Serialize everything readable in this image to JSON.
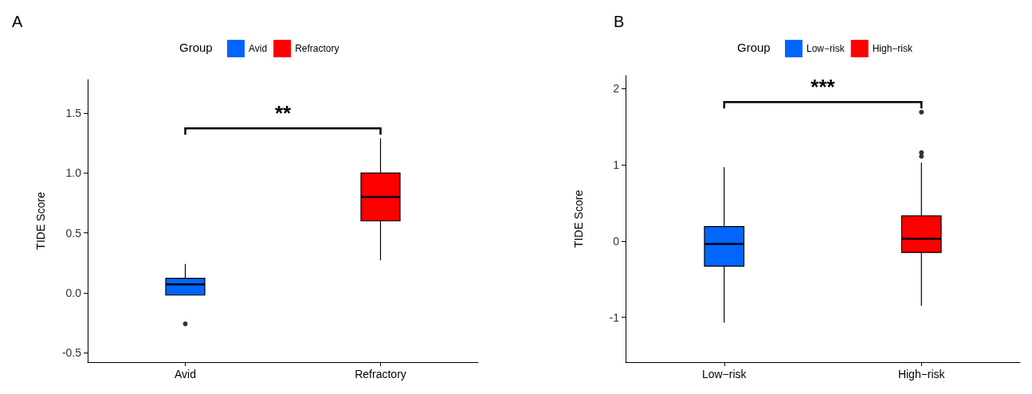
{
  "chart_data": [
    {
      "type": "box",
      "title": "A",
      "categories": [
        "Avid",
        "Refractory"
      ],
      "ylabel": "TIDE Score",
      "legend_title": "Group",
      "legend": "top",
      "grid": false,
      "ylim": [
        -0.58,
        1.78
      ],
      "yticks": [
        -0.5,
        {
          "value": 0,
          "label": "0.0"
        },
        0.5,
        {
          "value": 1,
          "label": "1.0"
        },
        1.5
      ],
      "annotations": [
        "**"
      ],
      "series": [
        {
          "name": "Avid",
          "color": "#0066ff",
          "boxes": [
            {
              "low": -0.02,
              "q1": -0.02,
              "median": 0.07,
              "q3": 0.12,
              "high": 0.24,
              "outliers": [
                -0.26
              ]
            },
            null
          ]
        },
        {
          "name": "Refractory",
          "color": "#ff0000",
          "boxes": [
            null,
            {
              "low": 0.27,
              "q1": 0.6,
              "median": 0.8,
              "q3": 1.0,
              "high": 1.29
            }
          ]
        }
      ]
    },
    {
      "type": "box",
      "title": "B",
      "categories": [
        "Low−risk",
        "High−risk"
      ],
      "ylabel": "TIDE Score",
      "legend_title": "Group",
      "legend": "top",
      "grid": false,
      "ylim": [
        -1.59,
        2.17
      ],
      "yticks": [
        -1,
        0,
        1,
        2
      ],
      "annotations": [
        "***"
      ],
      "series": [
        {
          "name": "Low−risk",
          "color": "#0066ff",
          "boxes": [
            {
              "low": -1.07,
              "q1": -0.33,
              "median": -0.04,
              "q3": 0.19,
              "high": 0.97
            },
            null
          ]
        },
        {
          "name": "High−risk",
          "color": "#ff0000",
          "boxes": [
            null,
            {
              "low": -0.85,
              "q1": -0.15,
              "median": 0.03,
              "q3": 0.33,
              "high": 1.03,
              "outliers": [
                1.11,
                1.16,
                1.69
              ]
            }
          ]
        }
      ]
    }
  ]
}
